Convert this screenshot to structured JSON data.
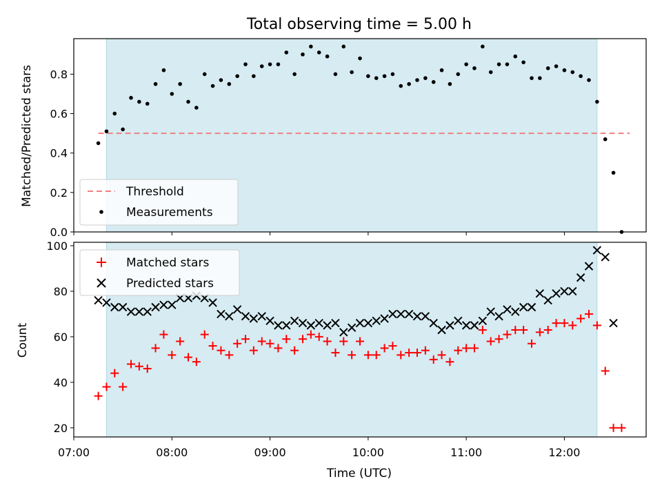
{
  "chart_data": [
    {
      "type": "scatter",
      "title": "Total observing time = 5.00 h",
      "ylabel": "Matched/Predicted stars",
      "xlabel": "",
      "xlim": [
        "07:00",
        "12:50"
      ],
      "ylim": [
        0,
        0.98
      ],
      "xticks": [
        "07:00",
        "08:00",
        "09:00",
        "10:00",
        "11:00",
        "12:00"
      ],
      "yticks": [
        "0.0",
        "0.2",
        "0.4",
        "0.6",
        "0.8"
      ],
      "shaded_interval": [
        "07:20",
        "12:20"
      ],
      "threshold": {
        "name": "Threshold",
        "value": 0.5,
        "x_range": [
          "07:15",
          "12:40"
        ],
        "color": "#f08080"
      },
      "series": [
        {
          "name": "Measurements",
          "color": "#000000",
          "x": [
            "07:15",
            "07:20",
            "07:25",
            "07:30",
            "07:35",
            "07:40",
            "07:45",
            "07:50",
            "07:55",
            "08:00",
            "08:05",
            "08:10",
            "08:15",
            "08:20",
            "08:25",
            "08:30",
            "08:35",
            "08:40",
            "08:45",
            "08:50",
            "08:55",
            "09:00",
            "09:05",
            "09:10",
            "09:15",
            "09:20",
            "09:25",
            "09:30",
            "09:35",
            "09:40",
            "09:45",
            "09:50",
            "09:55",
            "10:00",
            "10:05",
            "10:10",
            "10:15",
            "10:20",
            "10:25",
            "10:30",
            "10:35",
            "10:40",
            "10:45",
            "10:50",
            "10:55",
            "11:00",
            "11:05",
            "11:10",
            "11:15",
            "11:20",
            "11:25",
            "11:30",
            "11:35",
            "11:40",
            "11:45",
            "11:50",
            "11:55",
            "12:00",
            "12:05",
            "12:10",
            "12:15",
            "12:20",
            "12:25",
            "12:30",
            "12:35"
          ],
          "y": [
            0.45,
            0.51,
            0.6,
            0.52,
            0.68,
            0.66,
            0.65,
            0.75,
            0.82,
            0.7,
            0.75,
            0.66,
            0.63,
            0.8,
            0.74,
            0.77,
            0.75,
            0.79,
            0.85,
            0.79,
            0.84,
            0.85,
            0.85,
            0.91,
            0.8,
            0.9,
            0.94,
            0.91,
            0.89,
            0.8,
            0.94,
            0.81,
            0.88,
            0.79,
            0.78,
            0.79,
            0.8,
            0.74,
            0.75,
            0.77,
            0.78,
            0.76,
            0.82,
            0.75,
            0.8,
            0.85,
            0.83,
            0.94,
            0.81,
            0.85,
            0.85,
            0.89,
            0.86,
            0.78,
            0.78,
            0.83,
            0.84,
            0.82,
            0.81,
            0.79,
            0.77,
            0.66,
            0.47,
            0.3,
            0.0
          ]
        }
      ],
      "legend": {
        "location": "lower-left",
        "entries": [
          "Threshold",
          "Measurements"
        ]
      }
    },
    {
      "type": "scatter",
      "title": "",
      "ylabel": "Count",
      "xlabel": "Time (UTC)",
      "xlim": [
        "07:00",
        "12:50"
      ],
      "ylim": [
        16,
        101.5
      ],
      "xticks": [
        "07:00",
        "08:00",
        "09:00",
        "10:00",
        "11:00",
        "12:00"
      ],
      "yticks": [
        "20",
        "40",
        "60",
        "80",
        "100"
      ],
      "shaded_interval": [
        "07:20",
        "12:20"
      ],
      "series": [
        {
          "name": "Matched stars",
          "marker": "plus",
          "color": "#ff0000",
          "x": [
            "07:15",
            "07:20",
            "07:25",
            "07:30",
            "07:35",
            "07:40",
            "07:45",
            "07:50",
            "07:55",
            "08:00",
            "08:05",
            "08:10",
            "08:15",
            "08:20",
            "08:25",
            "08:30",
            "08:35",
            "08:40",
            "08:45",
            "08:50",
            "08:55",
            "09:00",
            "09:05",
            "09:10",
            "09:15",
            "09:20",
            "09:25",
            "09:30",
            "09:35",
            "09:40",
            "09:45",
            "09:50",
            "09:55",
            "10:00",
            "10:05",
            "10:10",
            "10:15",
            "10:20",
            "10:25",
            "10:30",
            "10:35",
            "10:40",
            "10:45",
            "10:50",
            "10:55",
            "11:00",
            "11:05",
            "11:10",
            "11:15",
            "11:20",
            "11:25",
            "11:30",
            "11:35",
            "11:40",
            "11:45",
            "11:50",
            "11:55",
            "12:00",
            "12:05",
            "12:10",
            "12:15",
            "12:20",
            "12:25",
            "12:30",
            "12:35"
          ],
          "y": [
            34,
            38,
            44,
            38,
            48,
            47,
            46,
            55,
            61,
            52,
            58,
            51,
            49,
            61,
            56,
            54,
            52,
            57,
            59,
            54,
            58,
            57,
            55,
            59,
            54,
            59,
            61,
            60,
            58,
            53,
            58,
            52,
            58,
            52,
            52,
            55,
            56,
            52,
            53,
            53,
            54,
            50,
            52,
            49,
            54,
            55,
            55,
            63,
            58,
            59,
            61,
            63,
            63,
            57,
            62,
            63,
            66,
            66,
            65,
            68,
            70,
            65,
            45,
            20,
            20
          ]
        },
        {
          "name": "Predicted stars",
          "marker": "x",
          "color": "#000000",
          "x": [
            "07:15",
            "07:20",
            "07:25",
            "07:30",
            "07:35",
            "07:40",
            "07:45",
            "07:50",
            "07:55",
            "08:00",
            "08:05",
            "08:10",
            "08:15",
            "08:20",
            "08:25",
            "08:30",
            "08:35",
            "08:40",
            "08:45",
            "08:50",
            "08:55",
            "09:00",
            "09:05",
            "09:10",
            "09:15",
            "09:20",
            "09:25",
            "09:30",
            "09:35",
            "09:40",
            "09:45",
            "09:50",
            "09:55",
            "10:00",
            "10:05",
            "10:10",
            "10:15",
            "10:20",
            "10:25",
            "10:30",
            "10:35",
            "10:40",
            "10:45",
            "10:50",
            "10:55",
            "11:00",
            "11:05",
            "11:10",
            "11:15",
            "11:20",
            "11:25",
            "11:30",
            "11:35",
            "11:40",
            "11:45",
            "11:50",
            "11:55",
            "12:00",
            "12:05",
            "12:10",
            "12:15",
            "12:20",
            "12:25",
            "12:30"
          ],
          "y": [
            76,
            75,
            73,
            73,
            71,
            71,
            71,
            73,
            74,
            74,
            77,
            77,
            78,
            77,
            75,
            70,
            69,
            72,
            69,
            68,
            69,
            67,
            65,
            65,
            67,
            66,
            65,
            66,
            65,
            66,
            62,
            64,
            66,
            66,
            67,
            68,
            70,
            70,
            70,
            69,
            69,
            66,
            63,
            65,
            67,
            65,
            65,
            67,
            71,
            69,
            72,
            71,
            73,
            73,
            79,
            76,
            79,
            80,
            80,
            86,
            91,
            98,
            95,
            66
          ]
        }
      ],
      "legend": {
        "location": "upper-left",
        "entries": [
          "Matched stars",
          "Predicted stars"
        ]
      }
    }
  ],
  "colors": {
    "shade": "#add8e6",
    "threshold": "#f08080",
    "matched": "#ff0000",
    "predicted": "#000000",
    "measurement": "#000000"
  }
}
